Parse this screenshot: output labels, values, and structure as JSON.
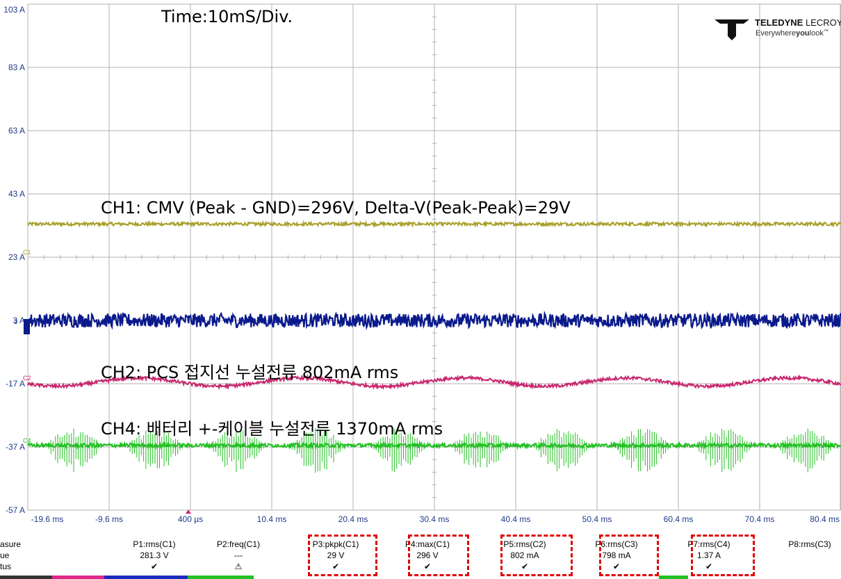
{
  "annotations": {
    "time": "Time:10mS/Div.",
    "ch1": "CH1:  CMV (Peak - GND)=296V,  Delta-V(Peak-Peak)=29V",
    "ch2": "CH2: PCS 접지선 누설전류 802mA rms",
    "ch4": "CH4: 배터리 +-케이블 누설전류 1370mA rms"
  },
  "logo": {
    "brand_bold": "TELEDYNE",
    "brand_light": " LECROY",
    "tagline_a": "Everywhere",
    "tagline_b": "you",
    "tagline_c": "look",
    "tm": "™"
  },
  "markers": {
    "c1": "C1",
    "c3": "3",
    "c2": "C2",
    "c4": "C4"
  },
  "measure_table": {
    "row_labels": [
      "asure",
      "ue",
      "tus"
    ],
    "columns": [
      {
        "name": "P1:rms(C1)",
        "value": "281.3 V",
        "status": "✔"
      },
      {
        "name": "P2:freq(C1)",
        "value": "---",
        "status": "⚠"
      },
      {
        "name": "P3:pkpk(C1)",
        "value": "29 V",
        "status": "✔"
      },
      {
        "name": "P4:max(C1)",
        "value": "296 V",
        "status": "✔"
      },
      {
        "name": "P5:rms(C2)",
        "value": "802 mA",
        "status": "✔"
      },
      {
        "name": "P6:rms(C3)",
        "value": "798 mA",
        "status": "✔"
      },
      {
        "name": "P7:rms(C4)",
        "value": "1.37 A",
        "status": "✔"
      },
      {
        "name": "P8:rms(C3)",
        "value": "",
        "status": ""
      }
    ]
  },
  "chart_data": {
    "type": "line",
    "y_tick_labels": [
      "103 A",
      "83 A",
      "63 A",
      "43 A",
      "23 A",
      "3 A",
      "-17 A",
      "-37 A",
      "-57 A"
    ],
    "x_tick_labels": [
      "-19.6 ms",
      "-9.6 ms",
      "400 µs",
      "10.4 ms",
      "20.4 ms",
      "30.4 ms",
      "40.4 ms",
      "50.4 ms",
      "60.4 ms",
      "70.4 ms",
      "80.4 ms"
    ],
    "ylim": [
      -57,
      103
    ],
    "xlim": [
      -19.6,
      80.4
    ],
    "grid": true,
    "series": [
      {
        "name": "C1",
        "color": "#a8a02a",
        "level": 33.5,
        "noise": 0.5,
        "ripple": 0,
        "period_ms": 20
      },
      {
        "name": "C3",
        "color": "#0a1a8c",
        "level": 3,
        "noise": 2.2,
        "ripple": 0,
        "period_ms": 20
      },
      {
        "name": "C2",
        "color": "#c8266e",
        "level": -16.5,
        "noise": 0.5,
        "ripple": 1.3,
        "period_ms": 20
      },
      {
        "name": "C4",
        "color": "#22c022",
        "level": -36.5,
        "noise": 0.6,
        "ripple": 0,
        "period_ms": 20,
        "burst_amp": 5
      }
    ],
    "colors": {
      "grid": "#b0b0b0",
      "axis_text": "#1f3a8a",
      "highlight": "#e00000"
    }
  }
}
